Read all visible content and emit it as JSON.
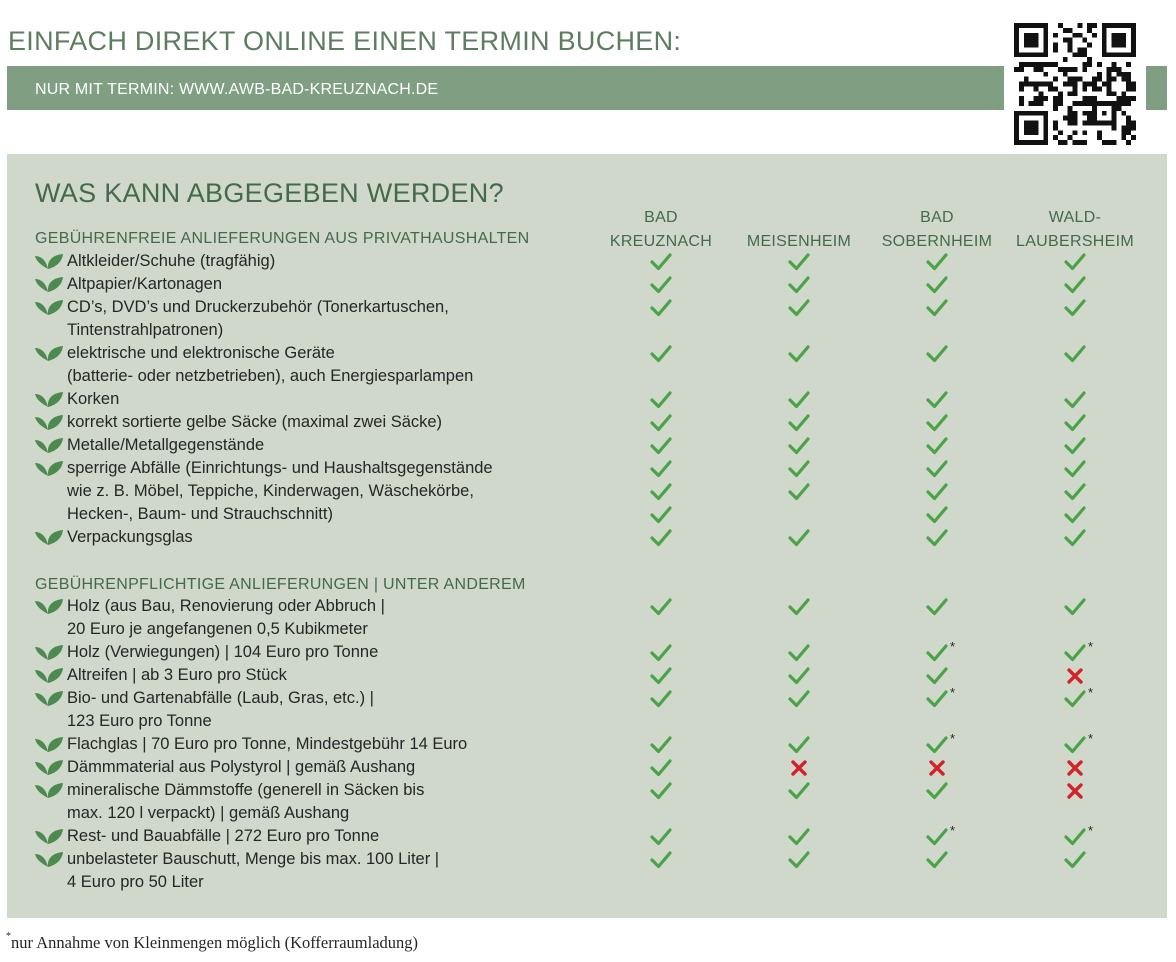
{
  "header": {
    "headline": "EINFACH DIREKT ONLINE EINEN TERMIN BUCHEN:",
    "banner": "NUR MIT TERMIN: WWW.AWB-BAD-KREUZNACH.DE"
  },
  "panel": {
    "title": "WAS KANN ABGEGEBEN WERDEN?",
    "columns": [
      {
        "line1": "BAD",
        "line2": "KREUZNACH"
      },
      {
        "line1": "",
        "line2": "MEISENHEIM"
      },
      {
        "line1": "BAD",
        "line2": "SOBERNHEIM"
      },
      {
        "line1": "WALD-",
        "line2": "LAUBERSHEIM"
      }
    ],
    "section_free": "GEBÜHRENFREIE ANLIEFERUNGEN AUS PRIVATHAUSHALTEN",
    "section_paid": "GEBÜHRENPFLICHTIGE ANLIEFERUNGEN | UNTER ANDEREM"
  },
  "rows": [
    {
      "text": "Altkleider/Schuhe (tragfähig)",
      "bullet": true,
      "marks": [
        "check",
        "check",
        "check",
        "check"
      ]
    },
    {
      "text": "Altpapier/Kartonagen",
      "bullet": true,
      "marks": [
        "check",
        "check",
        "check",
        "check"
      ]
    },
    {
      "text": "CD’s, DVD’s und Druckerzubehör (Tonerkartuschen,",
      "bullet": true,
      "marks": [
        "check",
        "check",
        "check",
        "check"
      ]
    },
    {
      "text": "Tintenstrahlpatronen)",
      "bullet": false,
      "marks": [
        "",
        "",
        "",
        ""
      ]
    },
    {
      "text": "elektrische und elektronische Geräte",
      "bullet": true,
      "marks": [
        "check",
        "check",
        "check",
        "check"
      ]
    },
    {
      "text": "(batterie- oder netzbetrieben), auch Energiesparlampen",
      "bullet": false,
      "marks": [
        "",
        "",
        "",
        ""
      ]
    },
    {
      "text": "Korken",
      "bullet": true,
      "marks": [
        "check",
        "check",
        "check",
        "check"
      ]
    },
    {
      "text": "korrekt sortierte gelbe Säcke (maximal zwei Säcke)",
      "bullet": true,
      "marks": [
        "check",
        "check",
        "check",
        "check"
      ]
    },
    {
      "text": "Metalle/Metallgegenstände",
      "bullet": true,
      "marks": [
        "check",
        "check",
        "check",
        "check"
      ]
    },
    {
      "text": "sperrige Abfälle (Einrichtungs- und Haushaltsgegenstände",
      "bullet": true,
      "marks": [
        "check",
        "check",
        "check",
        "check"
      ]
    },
    {
      "text": "wie z. B. Möbel, Teppiche, Kinderwagen, Wäschekörbe,",
      "bullet": false,
      "marks": [
        "check",
        "check",
        "check",
        "check"
      ]
    },
    {
      "text": "Hecken-, Baum- und Strauchschnitt)",
      "bullet": false,
      "marks": [
        "check",
        "",
        "check",
        "check"
      ]
    },
    {
      "text": "Verpackungsglas",
      "bullet": true,
      "marks": [
        "check",
        "check",
        "check",
        "check"
      ]
    },
    {
      "text": "Holz (aus Bau, Renovierung oder Abbruch |",
      "bullet": true,
      "marks": [
        "check",
        "check",
        "check",
        "check"
      ]
    },
    {
      "text": "20 Euro je angefangenen 0,5 Kubikmeter",
      "bullet": false,
      "marks": [
        "",
        "",
        "",
        ""
      ]
    },
    {
      "text": "Holz (Verwiegungen) | 104 Euro pro Tonne",
      "bullet": true,
      "marks": [
        "check",
        "check",
        "check*",
        "check*"
      ]
    },
    {
      "text": "Altreifen | ab 3 Euro pro Stück",
      "bullet": true,
      "marks": [
        "check",
        "check",
        "check",
        "cross"
      ]
    },
    {
      "text": "Bio- und Gartenabfälle (Laub, Gras, etc.) |",
      "bullet": true,
      "marks": [
        "check",
        "check",
        "check*",
        "check*"
      ]
    },
    {
      "text": "123 Euro pro Tonne",
      "bullet": false,
      "marks": [
        "",
        "",
        "",
        ""
      ]
    },
    {
      "text": "Flachglas | 70 Euro pro Tonne, Mindestgebühr 14 Euro",
      "bullet": true,
      "marks": [
        "check",
        "check",
        "check*",
        "check*"
      ]
    },
    {
      "text": "Dämmmaterial aus Polystyrol | gemäß Aushang",
      "bullet": true,
      "marks": [
        "check",
        "cross",
        "cross",
        "cross"
      ]
    },
    {
      "text": "mineralische Dämmstoffe (generell in Säcken bis",
      "bullet": true,
      "marks": [
        "check",
        "check",
        "check",
        "cross"
      ]
    },
    {
      "text": "max. 120 l verpackt) | gemäß Aushang",
      "bullet": false,
      "marks": [
        "",
        "",
        "",
        ""
      ]
    },
    {
      "text": "Rest- und Bauabfälle | 272 Euro pro Tonne",
      "bullet": true,
      "marks": [
        "check",
        "check",
        "check*",
        "check*"
      ]
    },
    {
      "text": "unbelasteter Bauschutt, Menge bis max. 100 Liter |",
      "bullet": true,
      "marks": [
        "check",
        "check",
        "check",
        "check"
      ]
    },
    {
      "text": "4 Euro pro 50 Liter",
      "bullet": false,
      "marks": [
        "",
        "",
        "",
        ""
      ]
    }
  ],
  "footnote": {
    "marker": "*",
    "text": "nur Annahme von Kleinmengen möglich (Kofferraumladung)"
  },
  "colors": {
    "check": "#4aa347",
    "cross": "#d2232a",
    "leaf": "#4d8a4f",
    "panel": "#cfd8cb",
    "banner": "#809f82"
  },
  "icons": {
    "bullet": "leaf-icon",
    "yes": "check-icon",
    "no": "cross-icon",
    "qr": "qr-code-icon"
  }
}
